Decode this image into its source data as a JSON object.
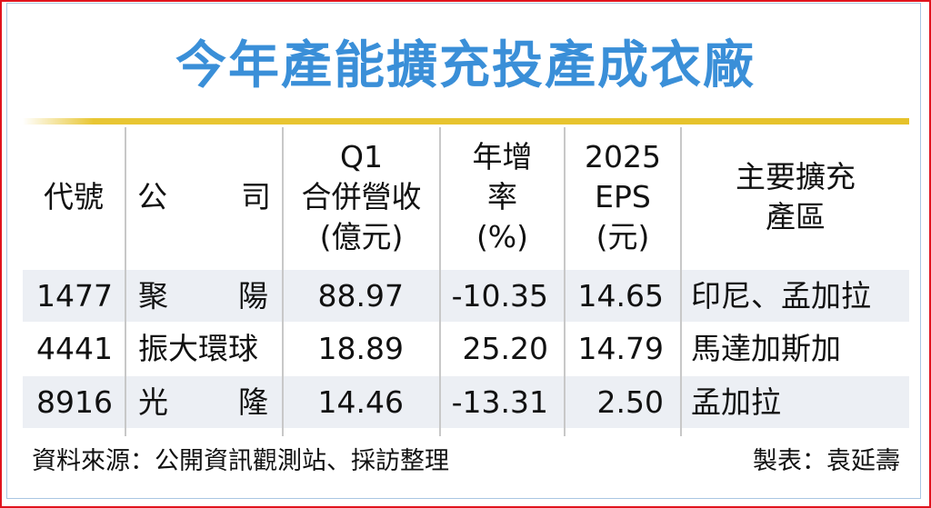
{
  "title": "今年產能擴充投產成衣廠",
  "headers": {
    "code": "代號",
    "company_a": "公",
    "company_b": "司",
    "revenue": [
      "Q1",
      "合併營收",
      "(億元)"
    ],
    "yoy": [
      "年增",
      "率",
      "(%)"
    ],
    "eps": [
      "2025",
      "EPS",
      "(元)"
    ],
    "region": [
      "主要擴充",
      "產區"
    ]
  },
  "rows": [
    {
      "code": "1477",
      "company": [
        "聚",
        "陽"
      ],
      "revenue": "88.97",
      "yoy": "-10.35",
      "eps": "14.65",
      "region": "印尼、孟加拉"
    },
    {
      "code": "4441",
      "company": [
        "振大環球"
      ],
      "revenue": "18.89",
      "yoy": "25.20",
      "eps": "14.79",
      "region": "馬達加斯加"
    },
    {
      "code": "8916",
      "company": [
        "光",
        "隆"
      ],
      "revenue": "14.46",
      "yoy": "-13.31",
      "eps": "2.50",
      "region": "孟加拉"
    }
  ],
  "footer": {
    "source": "資料來源：公開資訊觀測站、採訪整理",
    "credit": "製表：袁延壽"
  },
  "colors": {
    "title": "#3a8fd8",
    "border": "#e0141e",
    "rule": "#e6c22a",
    "row_shade": "#eceff4"
  }
}
